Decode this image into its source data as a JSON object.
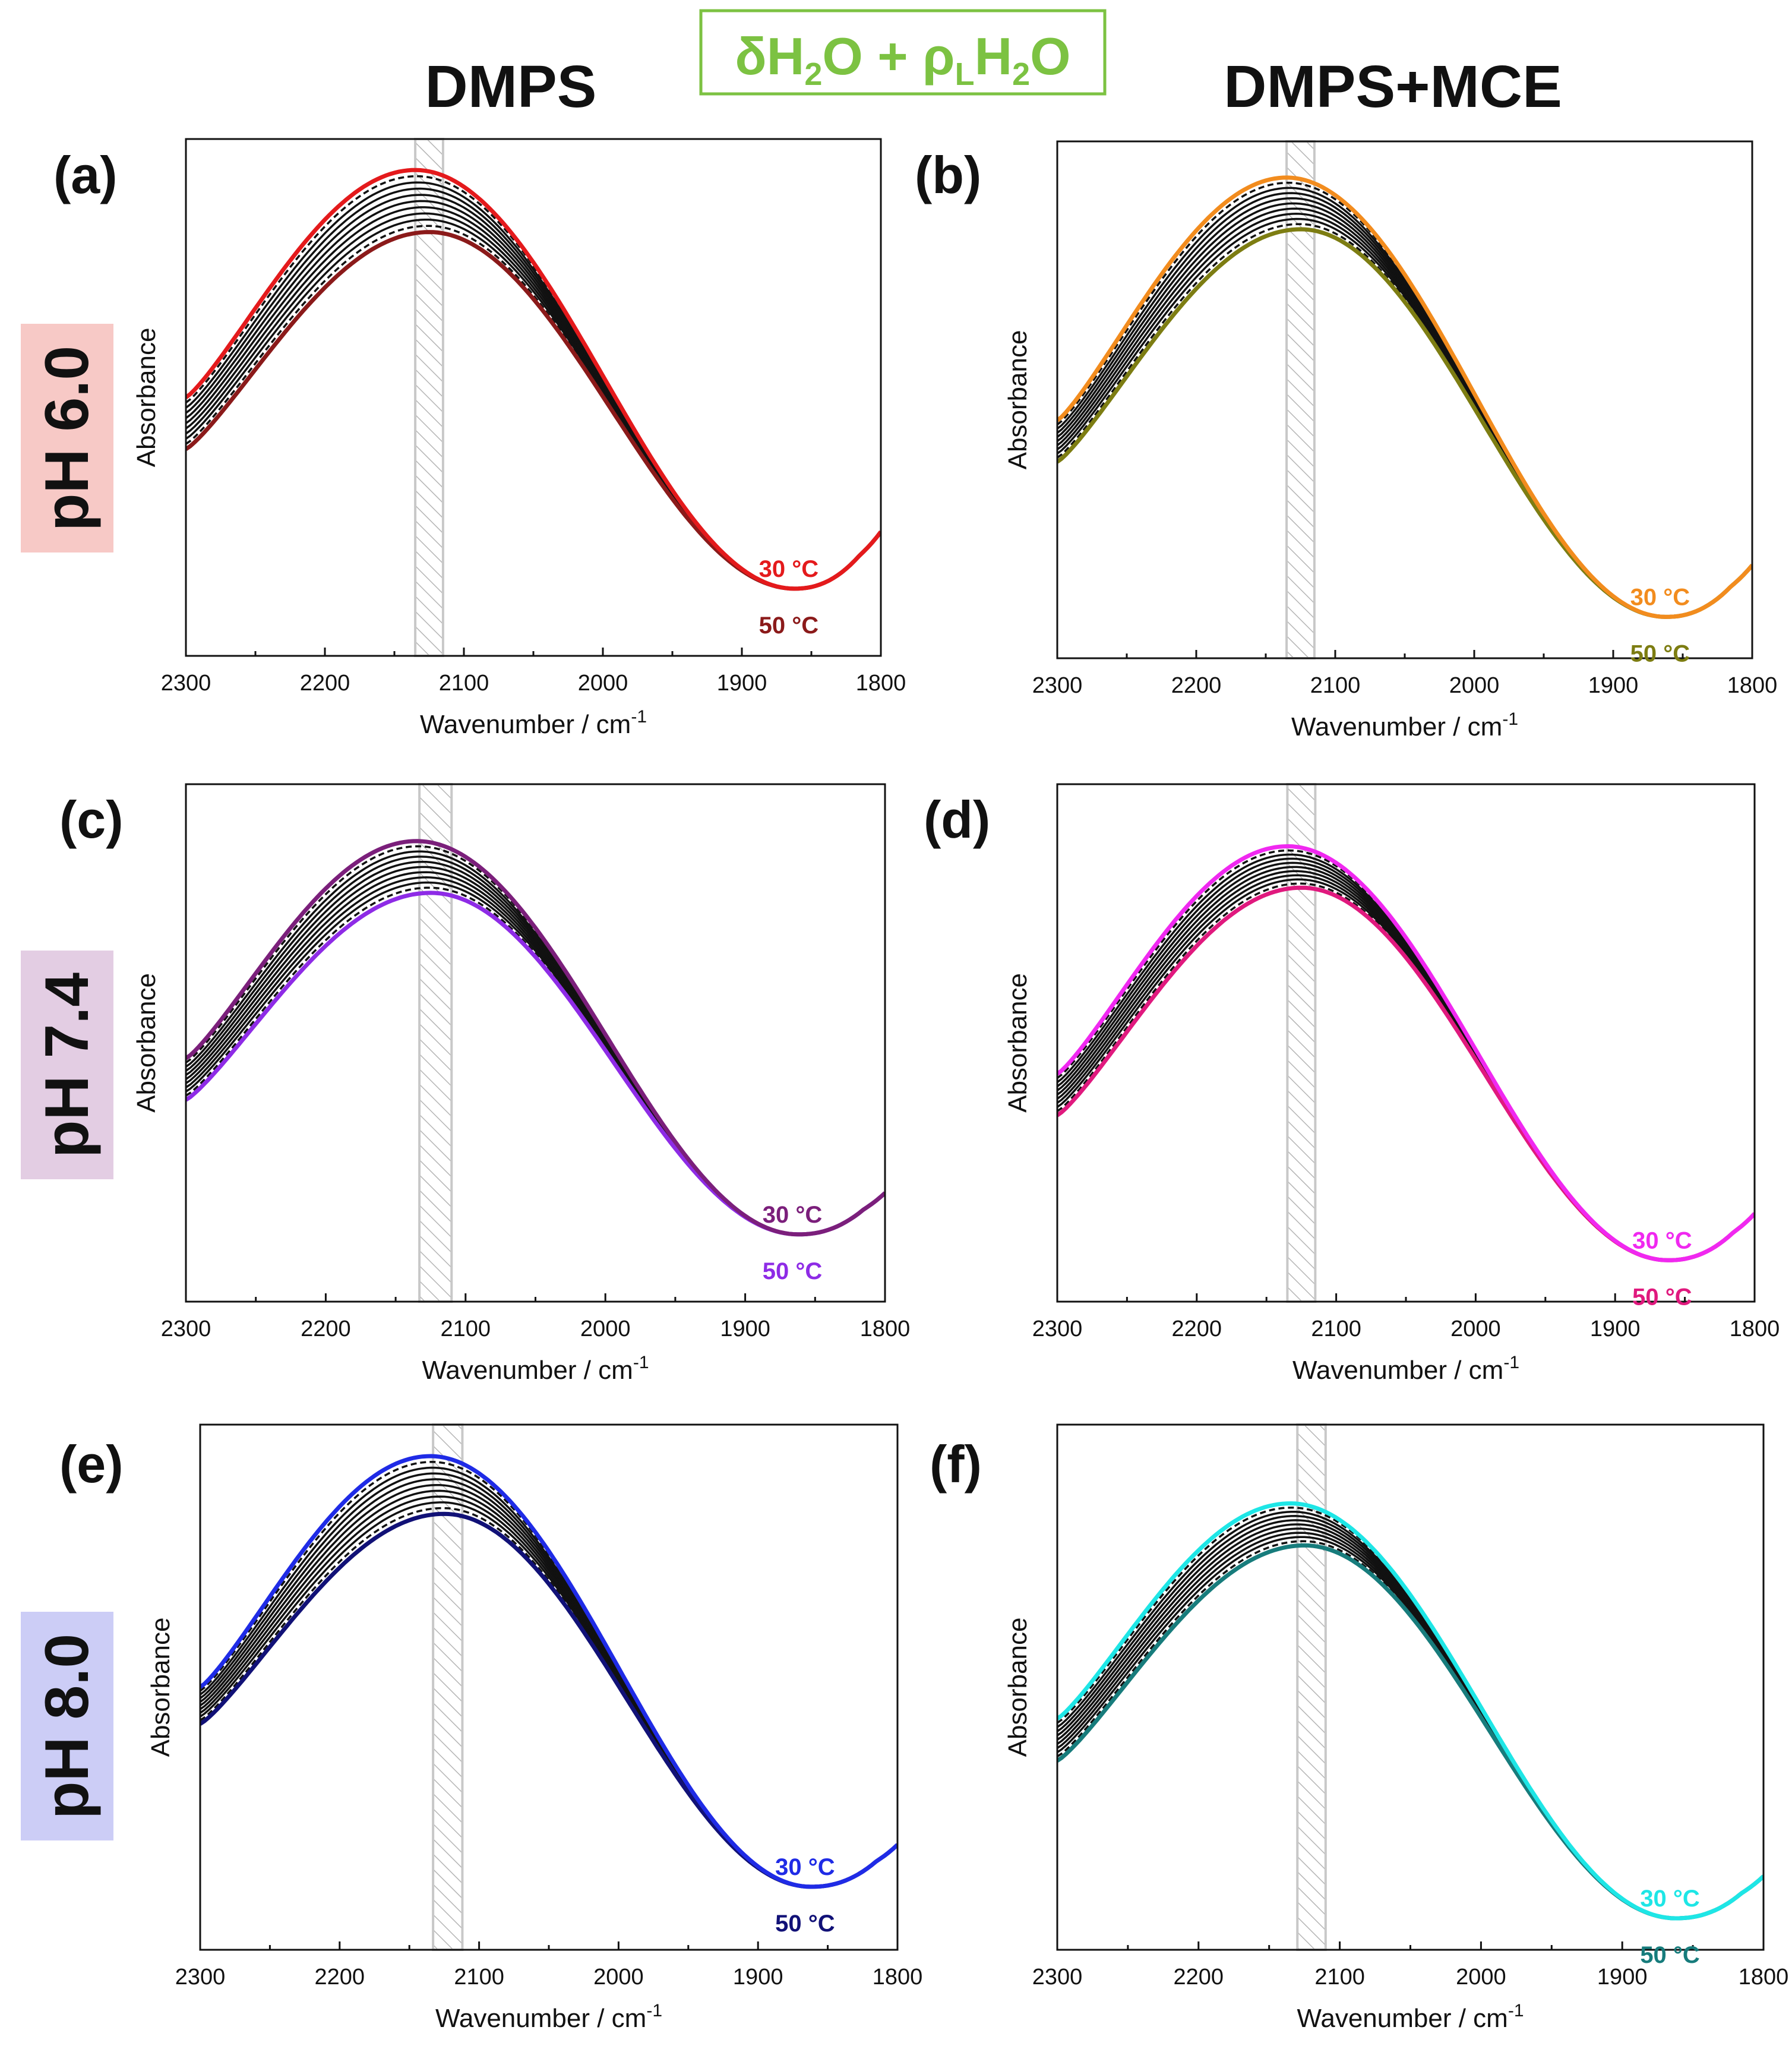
{
  "header": {
    "left_column_title": "DMPS",
    "right_column_title": "DMPS+MCE",
    "center_box": {
      "delta": "δ",
      "h2o_a": "H",
      "sub_2a": "2",
      "o_a": "O",
      "plus": " + ",
      "rho": "ρ",
      "sub_L": "L",
      "h2o_b": "H",
      "sub_2b": "2",
      "o_b": "O",
      "color": "#7cc242"
    }
  },
  "row_labels": [
    {
      "text": "pH 6.0",
      "bg": "#f7c9c6"
    },
    {
      "text": "pH 7.4",
      "bg": "#e3cde3"
    },
    {
      "text": "pH 8.0",
      "bg": "#cccdf6"
    }
  ],
  "chart_data": [
    {
      "type": "line",
      "panel": "(a)",
      "title": "",
      "xlabel_main": "Wavenumber / cm",
      "xlabel_sup": "-1",
      "ylabel": "Absorbance",
      "xlim": [
        2300,
        1800
      ],
      "xticks": [
        2300,
        2200,
        2100,
        2000,
        1900,
        1800
      ],
      "ylim": [
        0,
        1
      ],
      "y_tick_labels": false,
      "shaded_band": [
        2135,
        2115
      ],
      "series_count": 11,
      "peak": [
        0.94,
        0.82
      ],
      "left": [
        0.5,
        0.4
      ],
      "crossover_wavenumber": 2005,
      "min_value": 0.13,
      "end_value": 0.25,
      "first_series": {
        "name": "30 °C",
        "label_value": "30",
        "unit": "°C",
        "color": "#e41a1c"
      },
      "last_series": {
        "name": "50 °C",
        "label_value": "50",
        "unit": "°C",
        "color": "#8b1a1a"
      }
    },
    {
      "type": "line",
      "panel": "(b)",
      "title": "",
      "xlabel_main": "Wavenumber / cm",
      "xlabel_sup": "-1",
      "ylabel": "Absorbance",
      "xlim": [
        2300,
        1800
      ],
      "xticks": [
        2300,
        2200,
        2100,
        2000,
        1900,
        1800
      ],
      "ylim": [
        0,
        1
      ],
      "y_tick_labels": false,
      "shaded_band": [
        2135,
        2115
      ],
      "series_count": 11,
      "peak": [
        0.93,
        0.83
      ],
      "left": [
        0.46,
        0.38
      ],
      "crossover_wavenumber": 2030,
      "min_value": 0.08,
      "end_value": 0.19,
      "first_series": {
        "name": "30 °C",
        "label_value": "30",
        "unit": "°C",
        "color": "#f28c1e"
      },
      "last_series": {
        "name": "50 °C",
        "label_value": "50",
        "unit": "°C",
        "color": "#7d7d12"
      }
    },
    {
      "type": "line",
      "panel": "(c)",
      "title": "",
      "xlabel_main": "Wavenumber / cm",
      "xlabel_sup": "-1",
      "ylabel": "Absorbance",
      "xlim": [
        2300,
        1800
      ],
      "xticks": [
        2300,
        2200,
        2100,
        2000,
        1900,
        1800
      ],
      "ylim": [
        0,
        1
      ],
      "y_tick_labels": false,
      "shaded_band": [
        2133,
        2110
      ],
      "series_count": 11,
      "peak": [
        0.89,
        0.79
      ],
      "left": [
        0.47,
        0.39
      ],
      "crossover_wavenumber": 2015,
      "min_value": 0.13,
      "end_value": 0.22,
      "first_series": {
        "name": "30 °C",
        "label_value": "30",
        "unit": "°C",
        "color": "#7b1f7b"
      },
      "last_series": {
        "name": "50 °C",
        "label_value": "50",
        "unit": "°C",
        "color": "#8e2be6"
      }
    },
    {
      "type": "line",
      "panel": "(d)",
      "title": "",
      "xlabel_main": "Wavenumber / cm",
      "xlabel_sup": "-1",
      "ylabel": "Absorbance",
      "xlim": [
        2300,
        1800
      ],
      "xticks": [
        2300,
        2200,
        2100,
        2000,
        1900,
        1800
      ],
      "ylim": [
        0,
        1
      ],
      "y_tick_labels": false,
      "shaded_band": [
        2135,
        2115
      ],
      "series_count": 11,
      "peak": [
        0.88,
        0.8
      ],
      "left": [
        0.44,
        0.36
      ],
      "crossover_wavenumber": 2030,
      "min_value": 0.08,
      "end_value": 0.18,
      "first_series": {
        "name": "30 °C",
        "label_value": "30",
        "unit": "°C",
        "color": "#f028f0"
      },
      "last_series": {
        "name": "50 °C",
        "label_value": "50",
        "unit": "°C",
        "color": "#e0197e"
      }
    },
    {
      "type": "line",
      "panel": "(e)",
      "title": "",
      "xlabel_main": "Wavenumber / cm",
      "xlabel_sup": "-1",
      "ylabel": "Absorbance",
      "xlim": [
        2300,
        1800
      ],
      "xticks": [
        2300,
        2200,
        2100,
        2000,
        1900,
        1800
      ],
      "ylim": [
        0,
        1
      ],
      "y_tick_labels": false,
      "shaded_band": [
        2133,
        2112
      ],
      "series_count": 11,
      "peak": [
        0.94,
        0.83
      ],
      "left": [
        0.5,
        0.43
      ],
      "crossover_wavenumber": 2020,
      "min_value": 0.12,
      "end_value": 0.21,
      "first_series": {
        "name": "30 °C",
        "label_value": "30",
        "unit": "°C",
        "color": "#1f2be6"
      },
      "last_series": {
        "name": "50 °C",
        "label_value": "50",
        "unit": "°C",
        "color": "#111177"
      }
    },
    {
      "type": "line",
      "panel": "(f)",
      "title": "",
      "xlabel_main": "Wavenumber / cm",
      "xlabel_sup": "-1",
      "ylabel": "Absorbance",
      "xlim": [
        2300,
        1800
      ],
      "xticks": [
        2300,
        2200,
        2100,
        2000,
        1900,
        1800
      ],
      "ylim": [
        0,
        1
      ],
      "y_tick_labels": false,
      "shaded_band": [
        2130,
        2110
      ],
      "series_count": 11,
      "peak": [
        0.85,
        0.77
      ],
      "left": [
        0.44,
        0.36
      ],
      "crossover_wavenumber": 2030,
      "min_value": 0.06,
      "end_value": 0.15,
      "first_series": {
        "name": "30 °C",
        "label_value": "30",
        "unit": "°C",
        "color": "#1ee6e6"
      },
      "last_series": {
        "name": "50 °C",
        "label_value": "50",
        "unit": "°C",
        "color": "#177c7c"
      }
    }
  ]
}
